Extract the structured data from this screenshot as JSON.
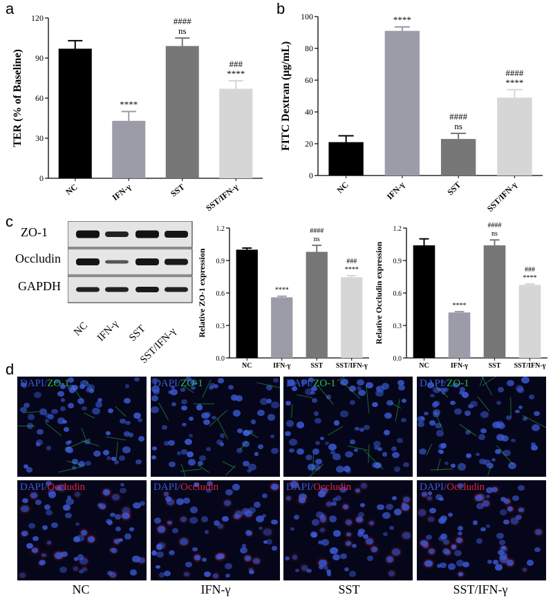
{
  "panel_labels": [
    "a",
    "b",
    "c",
    "d"
  ],
  "chart_data": [
    {
      "type": "bar",
      "panel": "a",
      "ylabel": "TER (% of Baseline)",
      "categories": [
        "NC",
        "IFN-γ",
        "SST",
        "SST/IFN-γ"
      ],
      "values": [
        97,
        43,
        99,
        67
      ],
      "errors": [
        6,
        7,
        6,
        6
      ],
      "colors": [
        "#000000",
        "#9c9ca8",
        "#777777",
        "#d6d6d6"
      ],
      "ylim": [
        0,
        120
      ],
      "yticks": [
        "0",
        "30",
        "60",
        "90",
        "120"
      ],
      "annotations": [
        [
          ""
        ],
        [
          "****"
        ],
        [
          "####",
          "ns"
        ],
        [
          "###",
          "****"
        ]
      ]
    },
    {
      "type": "bar",
      "panel": "b",
      "ylabel": "FITC Dextran (μg/mL)",
      "categories": [
        "NC",
        "IFN-γ",
        "SST",
        "SST/IFN-γ"
      ],
      "values": [
        21,
        91,
        23,
        49
      ],
      "errors": [
        4,
        2.5,
        3.5,
        5
      ],
      "colors": [
        "#000000",
        "#9c9ca8",
        "#777777",
        "#d6d6d6"
      ],
      "ylim": [
        0,
        100
      ],
      "yticks": [
        "0",
        "20",
        "40",
        "60",
        "80",
        "100"
      ],
      "annotations": [
        [
          ""
        ],
        [
          "****"
        ],
        [
          "####",
          "ns"
        ],
        [
          "####",
          "****"
        ]
      ]
    },
    {
      "type": "bar",
      "panel": "c",
      "ylabel": "Relative ZO-1 expression",
      "categories": [
        "NC",
        "IFN-γ",
        "SST",
        "SST/IFN-γ"
      ],
      "values": [
        1.0,
        0.56,
        0.98,
        0.745
      ],
      "errors": [
        0.015,
        0.01,
        0.06,
        0.015
      ],
      "colors": [
        "#000000",
        "#9c9ca8",
        "#777777",
        "#d6d6d6"
      ],
      "ylim": [
        0,
        1.2
      ],
      "yticks": [
        "0.0",
        "0.3",
        "0.6",
        "0.9",
        "1.2"
      ],
      "annotations": [
        [
          ""
        ],
        [
          "****"
        ],
        [
          "####",
          "ns"
        ],
        [
          "###",
          "****"
        ]
      ]
    },
    {
      "type": "bar",
      "panel": "c",
      "ylabel": "Relative Occludin expression",
      "categories": [
        "NC",
        "IFN-γ",
        "SST",
        "SST/IFN-γ"
      ],
      "values": [
        1.04,
        0.42,
        1.04,
        0.675
      ],
      "errors": [
        0.06,
        0.008,
        0.05,
        0.008
      ],
      "colors": [
        "#000000",
        "#9c9ca8",
        "#777777",
        "#d6d6d6"
      ],
      "ylim": [
        0,
        1.2
      ],
      "yticks": [
        "0.0",
        "0.3",
        "0.6",
        "0.9",
        "1.2"
      ],
      "annotations": [
        [
          ""
        ],
        [
          "****"
        ],
        [
          "####",
          "ns"
        ],
        [
          "###",
          "****"
        ]
      ]
    }
  ],
  "blot": {
    "rows": [
      "ZO-1",
      "Occludin",
      "GAPDH"
    ],
    "columns": [
      "NC",
      "IFN-γ",
      "SST",
      "SST/IFN-γ"
    ]
  },
  "micrographs": {
    "row1_prefix": "DAPI/",
    "row1_stain": "ZO-1",
    "row2_prefix": "DAPI/",
    "row2_stain": "Occludin",
    "captions": [
      "NC",
      "IFN-γ",
      "SST",
      "SST/IFN-γ"
    ],
    "colors": {
      "dapi": "#3b5bd6",
      "zo1": "#2ec04a",
      "occludin": "#e0243a",
      "background": "#06061a"
    }
  }
}
